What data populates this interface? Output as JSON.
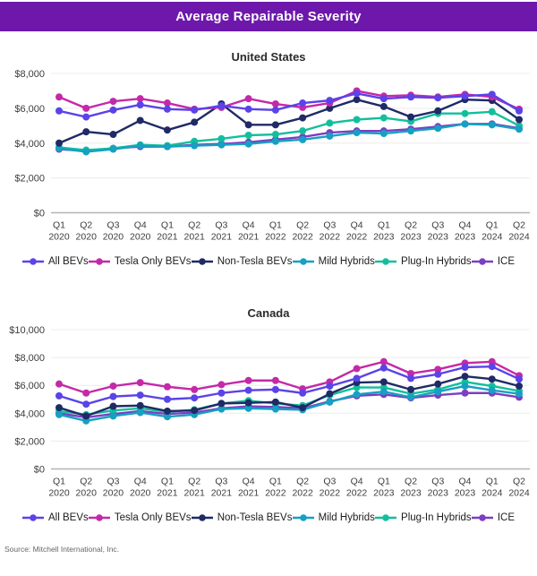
{
  "header": {
    "title": "Average Repairable Severity"
  },
  "source": "Source: Mitchell International, Inc.",
  "colors": {
    "all_bevs": "#5a43e8",
    "tesla_only_bevs": "#c429a8",
    "non_tesla_bevs": "#1f2a66",
    "mild_hybrids": "#16a0c2",
    "plug_in_hybrids": "#12bf9c",
    "ice": "#7c3ec2",
    "header_bg": "#6d18ab"
  },
  "chart_data": [
    {
      "type": "line",
      "title": "United States",
      "categories": [
        "Q1 2020",
        "Q2 2020",
        "Q3 2020",
        "Q4 2020",
        "Q1 2021",
        "Q2 2021",
        "Q3 2021",
        "Q4 2021",
        "Q1 2022",
        "Q2 2022",
        "Q3 2022",
        "Q4 2022",
        "Q1 2023",
        "Q2 2023",
        "Q3 2023",
        "Q4 2023",
        "Q1 2024",
        "Q2 2024"
      ],
      "ylim": [
        0,
        8000
      ],
      "ytick_step": 2000,
      "ytick_labels": [
        "$0",
        "$2,000",
        "$4,000",
        "$6,000",
        "$8,000"
      ],
      "grid": true,
      "legend_position": "bottom",
      "series": [
        {
          "name": "All BEVs",
          "color_key": "all_bevs",
          "values": [
            5850,
            5500,
            5900,
            6200,
            5950,
            5900,
            6150,
            5950,
            5900,
            6300,
            6450,
            6850,
            6550,
            6650,
            6600,
            6700,
            6800,
            5850
          ]
        },
        {
          "name": "Tesla Only BEVs",
          "color_key": "tesla_only_bevs",
          "values": [
            6650,
            6000,
            6400,
            6550,
            6300,
            5950,
            6050,
            6550,
            6250,
            6050,
            6300,
            7000,
            6700,
            6750,
            6650,
            6800,
            6650,
            5950
          ]
        },
        {
          "name": "Non-Tesla BEVs",
          "color_key": "non_tesla_bevs",
          "values": [
            4000,
            4650,
            4500,
            5300,
            4750,
            5200,
            6250,
            5050,
            5050,
            5450,
            6000,
            6500,
            6100,
            5500,
            5850,
            6500,
            6450,
            5350
          ]
        },
        {
          "name": "Mild Hybrids",
          "color_key": "mild_hybrids",
          "values": [
            3700,
            3500,
            3650,
            3850,
            3800,
            3850,
            3900,
            3950,
            4100,
            4200,
            4400,
            4600,
            4550,
            4700,
            4850,
            5100,
            5050,
            4800
          ]
        },
        {
          "name": "Plug-In Hybrids",
          "color_key": "plug_in_hybrids",
          "values": [
            3750,
            3600,
            3700,
            3900,
            3850,
            4100,
            4250,
            4450,
            4500,
            4700,
            5150,
            5350,
            5450,
            5250,
            5700,
            5700,
            5800,
            5000
          ]
        },
        {
          "name": "ICE",
          "color_key": "ice",
          "values": [
            3650,
            3550,
            3700,
            3800,
            3800,
            3900,
            3950,
            4050,
            4200,
            4350,
            4600,
            4700,
            4700,
            4800,
            4950,
            5100,
            5100,
            4850
          ]
        }
      ]
    },
    {
      "type": "line",
      "title": "Canada",
      "categories": [
        "Q1 2020",
        "Q2 2020",
        "Q3 2020",
        "Q4 2020",
        "Q1 2021",
        "Q2 2021",
        "Q3 2021",
        "Q4 2021",
        "Q1 2022",
        "Q2 2022",
        "Q3 2022",
        "Q4 2022",
        "Q1 2023",
        "Q2 2023",
        "Q3 2023",
        "Q4 2023",
        "Q1 2024",
        "Q2 2024"
      ],
      "ylim": [
        0,
        10000
      ],
      "ytick_step": 2000,
      "ytick_labels": [
        "$0",
        "$2,000",
        "$4,000",
        "$6,000",
        "$8,000",
        "$10,000"
      ],
      "grid": true,
      "legend_position": "bottom",
      "series": [
        {
          "name": "All BEVs",
          "color_key": "all_bevs",
          "values": [
            5250,
            4650,
            5200,
            5300,
            5000,
            5100,
            5450,
            5650,
            5700,
            5450,
            5950,
            6500,
            7250,
            6500,
            6800,
            7300,
            7350,
            6450
          ]
        },
        {
          "name": "Tesla Only BEVs",
          "color_key": "tesla_only_bevs",
          "values": [
            6100,
            5450,
            5950,
            6200,
            5900,
            5700,
            6050,
            6350,
            6350,
            5750,
            6250,
            7200,
            7700,
            6850,
            7150,
            7600,
            7700,
            6700
          ]
        },
        {
          "name": "Non-Tesla BEVs",
          "color_key": "non_tesla_bevs",
          "values": [
            4400,
            3800,
            4500,
            4550,
            4150,
            4200,
            4700,
            4750,
            4800,
            4400,
            5400,
            6200,
            6250,
            5700,
            6100,
            6650,
            6450,
            5950
          ]
        },
        {
          "name": "Mild Hybrids",
          "color_key": "mild_hybrids",
          "values": [
            3900,
            3450,
            3800,
            4050,
            3750,
            3900,
            4300,
            4350,
            4300,
            4250,
            4800,
            5350,
            5550,
            5150,
            5550,
            5950,
            5650,
            5400
          ]
        },
        {
          "name": "Plug-In Hybrids",
          "color_key": "plug_in_hybrids",
          "values": [
            4150,
            3900,
            4200,
            4350,
            4100,
            4250,
            4700,
            4900,
            4700,
            4550,
            5300,
            5850,
            5850,
            5400,
            5700,
            6250,
            5950,
            5600
          ]
        },
        {
          "name": "ICE",
          "color_key": "ice",
          "values": [
            4000,
            3700,
            3950,
            4150,
            3950,
            4050,
            4350,
            4500,
            4450,
            4350,
            4850,
            5250,
            5350,
            5100,
            5300,
            5450,
            5450,
            5150
          ]
        }
      ]
    }
  ]
}
